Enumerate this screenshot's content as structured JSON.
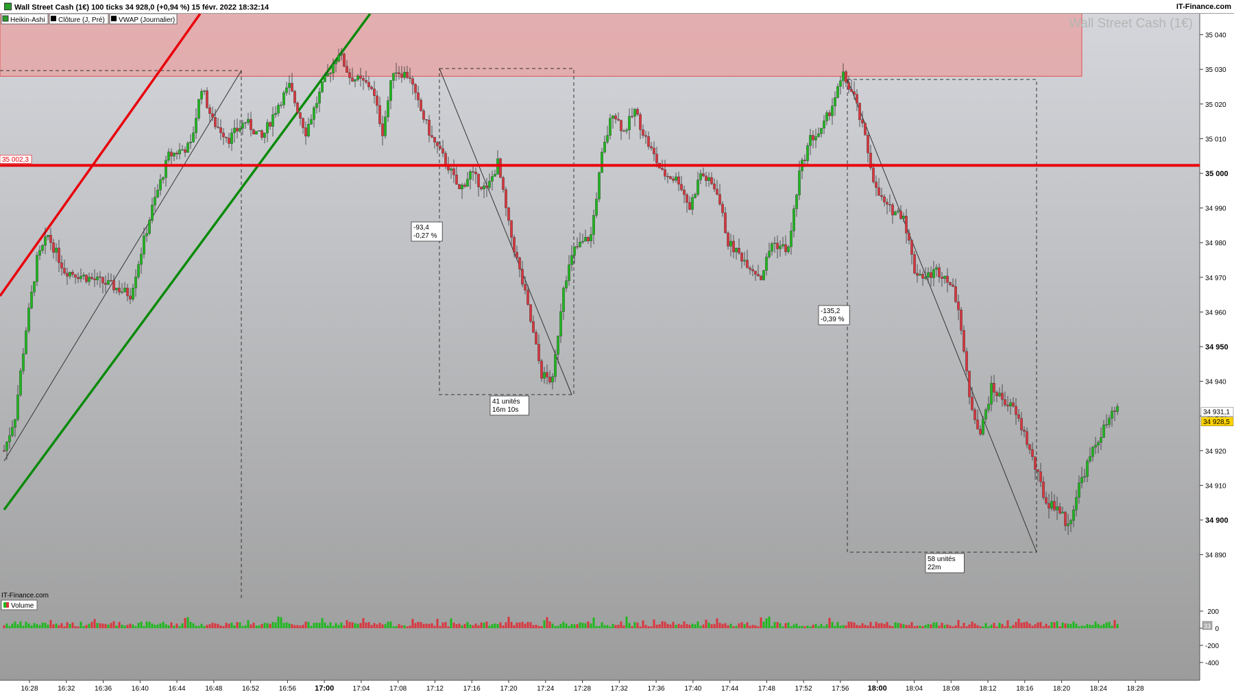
{
  "header": {
    "title": "Wall Street Cash (1€) 100 ticks 34 928,0 (+0,94 %) 15 févr. 2022 18:32:14",
    "brand": "IT-Finance.com"
  },
  "legend": {
    "items": [
      {
        "label": "Heikin-Ashi",
        "color": "#2a9d2a"
      },
      {
        "label": "Clôture (J, Pré)",
        "color": "#000000"
      },
      {
        "label": "VWAP (Journalier)",
        "color": "#000000"
      }
    ]
  },
  "watermark": "Wall Street Cash (1€)",
  "footer_label": "IT-Finance.com",
  "volume_legend": "Volume",
  "colors": {
    "up": "#1fb81f",
    "down": "#d9363e",
    "resistance_line": "#e8000b",
    "green_trend": "#0a8a0a",
    "red_trend": "#e8000b",
    "zone_fill": "#e8a0a0",
    "price_tag_bg": "#ffd400"
  },
  "chart_data": {
    "type": "candlestick",
    "title": "Wall Street Cash (1€)",
    "x_ticks": [
      "16:28",
      "16:32",
      "16:36",
      "16:40",
      "16:44",
      "16:48",
      "16:52",
      "16:56",
      "17:00",
      "17:04",
      "17:08",
      "17:12",
      "17:16",
      "17:20",
      "17:24",
      "17:28",
      "17:32",
      "17:36",
      "17:40",
      "17:44",
      "17:48",
      "17:52",
      "17:56",
      "18:00",
      "18:04",
      "18:08",
      "18:12",
      "18:16",
      "18:20",
      "18:24",
      "18:28"
    ],
    "y_ticks": [
      "35 040",
      "35 030",
      "35 020",
      "35 010",
      "35 000",
      "34 990",
      "34 980",
      "34 970",
      "34 960",
      "34 950",
      "34 940",
      "34 930",
      "34 920",
      "34 910",
      "34 900",
      "34 890"
    ],
    "y_range": [
      34885,
      35047
    ],
    "horizontal_line": {
      "value": 35002.3,
      "label": "35 002,3"
    },
    "resistance_zone": [
      35028,
      35047
    ],
    "current_prices": {
      "last": "34 931,1",
      "close": "34 928,5"
    },
    "annotations": [
      {
        "text": [
          "-93,4",
          "-0,27 %"
        ]
      },
      {
        "text": [
          "41 unités",
          "16m 10s"
        ]
      },
      {
        "text": [
          "-135,2",
          "-0,39 %"
        ]
      },
      {
        "text": [
          "58 unités",
          "22m"
        ]
      }
    ],
    "volume_ticks": [
      "200",
      "0",
      "-200",
      "-400"
    ],
    "volume_badge": "33",
    "price_keypoints": [
      [
        0,
        34920
      ],
      [
        4,
        34930
      ],
      [
        8,
        34955
      ],
      [
        12,
        34975
      ],
      [
        16,
        34982
      ],
      [
        22,
        34972
      ],
      [
        30,
        34970
      ],
      [
        38,
        34968
      ],
      [
        46,
        34965
      ],
      [
        54,
        34990
      ],
      [
        60,
        35005
      ],
      [
        68,
        35008
      ],
      [
        72,
        35025
      ],
      [
        76,
        35015
      ],
      [
        82,
        35010
      ],
      [
        88,
        35015
      ],
      [
        94,
        35010
      ],
      [
        100,
        35020
      ],
      [
        104,
        35025
      ],
      [
        110,
        35012
      ],
      [
        116,
        35025
      ],
      [
        122,
        35035
      ],
      [
        126,
        35028
      ],
      [
        134,
        35025
      ],
      [
        138,
        35012
      ],
      [
        142,
        35030
      ],
      [
        148,
        35028
      ],
      [
        150,
        35022
      ],
      [
        156,
        35010
      ],
      [
        162,
        35002
      ],
      [
        166,
        34995
      ],
      [
        170,
        35000
      ],
      [
        176,
        34995
      ],
      [
        180,
        35003
      ],
      [
        184,
        34985
      ],
      [
        190,
        34965
      ],
      [
        196,
        34942
      ],
      [
        200,
        34940
      ],
      [
        204,
        34968
      ],
      [
        208,
        34978
      ],
      [
        214,
        34982
      ],
      [
        218,
        35005
      ],
      [
        222,
        35018
      ],
      [
        226,
        35012
      ],
      [
        230,
        35018
      ],
      [
        234,
        35010
      ],
      [
        240,
        35000
      ],
      [
        246,
        34998
      ],
      [
        250,
        34990
      ],
      [
        254,
        35000
      ],
      [
        260,
        34995
      ],
      [
        264,
        34980
      ],
      [
        270,
        34975
      ],
      [
        276,
        34970
      ],
      [
        280,
        34980
      ],
      [
        286,
        34978
      ],
      [
        290,
        35000
      ],
      [
        294,
        35010
      ],
      [
        298,
        35012
      ],
      [
        302,
        35020
      ],
      [
        306,
        35028
      ],
      [
        310,
        35022
      ],
      [
        314,
        35010
      ],
      [
        318,
        34995
      ],
      [
        322,
        34990
      ],
      [
        328,
        34988
      ],
      [
        332,
        34972
      ],
      [
        336,
        34970
      ],
      [
        340,
        34972
      ],
      [
        344,
        34970
      ],
      [
        348,
        34962
      ],
      [
        352,
        34935
      ],
      [
        356,
        34925
      ],
      [
        360,
        34938
      ],
      [
        364,
        34935
      ],
      [
        368,
        34932
      ],
      [
        372,
        34925
      ],
      [
        376,
        34915
      ],
      [
        380,
        34905
      ],
      [
        384,
        34904
      ],
      [
        388,
        34898
      ],
      [
        392,
        34910
      ],
      [
        396,
        34918
      ],
      [
        400,
        34925
      ],
      [
        404,
        34930
      ],
      [
        406,
        34932
      ]
    ]
  }
}
